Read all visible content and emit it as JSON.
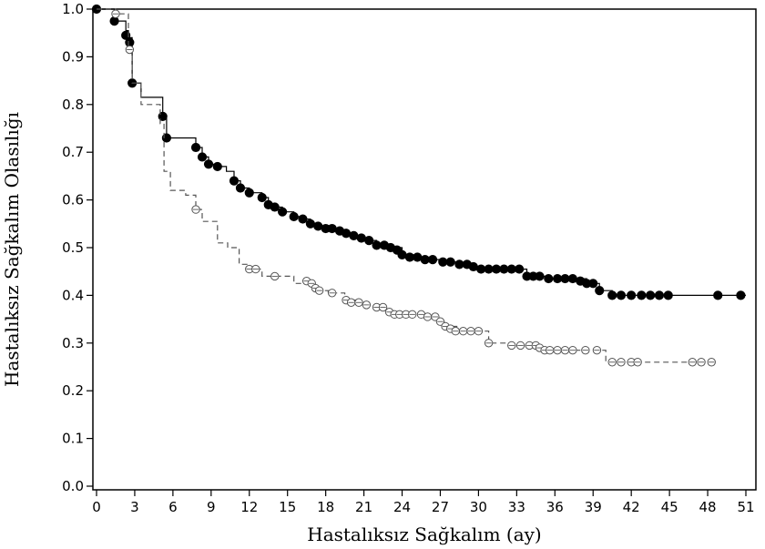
{
  "chart_data": {
    "type": "line",
    "title": "",
    "xlabel": "Hastalıksız Sağkalım (ay)",
    "ylabel": "Hastalıksız Sağkalım Olasılığı",
    "xlim": [
      0,
      51
    ],
    "ylim": [
      0,
      1
    ],
    "x_ticks": [
      "0",
      "3",
      "6",
      "9",
      "12",
      "15",
      "18",
      "21",
      "24",
      "27",
      "30",
      "33",
      "36",
      "39",
      "42",
      "45",
      "48",
      "51"
    ],
    "y_ticks": [
      "0.0",
      "0.1",
      "0.2",
      "0.3",
      "0.4",
      "0.5",
      "0.6",
      "0.7",
      "0.8",
      "0.9",
      "1.0"
    ],
    "grid": false,
    "legend": "none",
    "series": [
      {
        "style": "solid",
        "marker": "filled-circle",
        "color": "#000000",
        "step_points": [
          [
            0,
            1.0
          ],
          [
            1.4,
            0.975
          ],
          [
            2.3,
            0.955
          ],
          [
            2.5,
            0.94
          ],
          [
            2.8,
            0.845
          ],
          [
            3.5,
            0.815
          ],
          [
            5.2,
            0.775
          ],
          [
            5.5,
            0.73
          ],
          [
            6.8,
            0.73
          ],
          [
            7.8,
            0.71
          ],
          [
            8.3,
            0.69
          ],
          [
            8.8,
            0.675
          ],
          [
            9.5,
            0.67
          ],
          [
            10.2,
            0.66
          ],
          [
            10.8,
            0.64
          ],
          [
            11.3,
            0.625
          ],
          [
            12.0,
            0.615
          ],
          [
            13.0,
            0.605
          ],
          [
            13.5,
            0.59
          ],
          [
            14.0,
            0.585
          ],
          [
            14.6,
            0.575
          ],
          [
            15.5,
            0.565
          ],
          [
            16.2,
            0.56
          ],
          [
            16.8,
            0.55
          ],
          [
            17.4,
            0.545
          ],
          [
            18.0,
            0.54
          ],
          [
            19.1,
            0.535
          ],
          [
            19.8,
            0.525
          ],
          [
            20.5,
            0.52
          ],
          [
            21.2,
            0.515
          ],
          [
            22.0,
            0.505
          ],
          [
            23.1,
            0.5
          ],
          [
            24.0,
            0.485
          ],
          [
            25.2,
            0.48
          ],
          [
            26.4,
            0.475
          ],
          [
            27.2,
            0.47
          ],
          [
            28.5,
            0.465
          ],
          [
            29.6,
            0.46
          ],
          [
            30.2,
            0.455
          ],
          [
            33.8,
            0.44
          ],
          [
            35.5,
            0.435
          ],
          [
            38.5,
            0.425
          ],
          [
            39.5,
            0.41
          ],
          [
            40.5,
            0.4
          ],
          [
            51.0,
            0.4
          ]
        ],
        "markers": [
          [
            0,
            1.0
          ],
          [
            1.4,
            0.975
          ],
          [
            2.3,
            0.945
          ],
          [
            2.6,
            0.93
          ],
          [
            2.8,
            0.845
          ],
          [
            5.2,
            0.775
          ],
          [
            5.5,
            0.73
          ],
          [
            7.8,
            0.71
          ],
          [
            8.3,
            0.69
          ],
          [
            8.8,
            0.675
          ],
          [
            9.5,
            0.67
          ],
          [
            10.8,
            0.64
          ],
          [
            11.3,
            0.625
          ],
          [
            12.0,
            0.615
          ],
          [
            13.0,
            0.605
          ],
          [
            13.5,
            0.59
          ],
          [
            14.0,
            0.585
          ],
          [
            14.6,
            0.575
          ],
          [
            15.5,
            0.565
          ],
          [
            16.2,
            0.56
          ],
          [
            16.8,
            0.55
          ],
          [
            17.4,
            0.545
          ],
          [
            18.0,
            0.54
          ],
          [
            18.5,
            0.54
          ],
          [
            19.1,
            0.535
          ],
          [
            19.6,
            0.53
          ],
          [
            20.2,
            0.525
          ],
          [
            20.8,
            0.52
          ],
          [
            21.4,
            0.515
          ],
          [
            22.0,
            0.505
          ],
          [
            22.6,
            0.505
          ],
          [
            23.1,
            0.5
          ],
          [
            23.6,
            0.495
          ],
          [
            24.0,
            0.485
          ],
          [
            24.6,
            0.48
          ],
          [
            25.2,
            0.48
          ],
          [
            25.8,
            0.475
          ],
          [
            26.4,
            0.475
          ],
          [
            27.2,
            0.47
          ],
          [
            27.8,
            0.47
          ],
          [
            28.5,
            0.465
          ],
          [
            29.1,
            0.465
          ],
          [
            29.6,
            0.46
          ],
          [
            30.2,
            0.455
          ],
          [
            30.8,
            0.455
          ],
          [
            31.4,
            0.455
          ],
          [
            32.0,
            0.455
          ],
          [
            32.6,
            0.455
          ],
          [
            33.2,
            0.455
          ],
          [
            33.8,
            0.44
          ],
          [
            34.3,
            0.44
          ],
          [
            34.8,
            0.44
          ],
          [
            35.5,
            0.435
          ],
          [
            36.2,
            0.435
          ],
          [
            36.8,
            0.435
          ],
          [
            37.4,
            0.435
          ],
          [
            38.0,
            0.43
          ],
          [
            38.5,
            0.425
          ],
          [
            39.0,
            0.425
          ],
          [
            39.5,
            0.41
          ],
          [
            40.5,
            0.4
          ],
          [
            41.2,
            0.4
          ],
          [
            42.0,
            0.4
          ],
          [
            42.8,
            0.4
          ],
          [
            43.5,
            0.4
          ],
          [
            44.2,
            0.4
          ],
          [
            44.9,
            0.4
          ],
          [
            48.8,
            0.4
          ],
          [
            50.6,
            0.4
          ]
        ]
      },
      {
        "style": "dashed",
        "marker": "open-circle",
        "color": "#555555",
        "step_points": [
          [
            0,
            1.0
          ],
          [
            1.5,
            0.99
          ],
          [
            2.5,
            0.92
          ],
          [
            2.8,
            0.845
          ],
          [
            3.5,
            0.8
          ],
          [
            5.0,
            0.76
          ],
          [
            5.3,
            0.66
          ],
          [
            5.8,
            0.62
          ],
          [
            7.0,
            0.61
          ],
          [
            7.8,
            0.58
          ],
          [
            8.3,
            0.555
          ],
          [
            9.5,
            0.51
          ],
          [
            10.3,
            0.5
          ],
          [
            11.2,
            0.465
          ],
          [
            12.0,
            0.455
          ],
          [
            13.0,
            0.44
          ],
          [
            15.5,
            0.425
          ],
          [
            16.8,
            0.42
          ],
          [
            17.2,
            0.41
          ],
          [
            18.2,
            0.405
          ],
          [
            19.5,
            0.39
          ],
          [
            20.5,
            0.38
          ],
          [
            22.2,
            0.37
          ],
          [
            23.2,
            0.36
          ],
          [
            25.5,
            0.355
          ],
          [
            26.8,
            0.345
          ],
          [
            27.3,
            0.335
          ],
          [
            28.3,
            0.325
          ],
          [
            30.8,
            0.3
          ],
          [
            33.0,
            0.295
          ],
          [
            35.0,
            0.285
          ],
          [
            38.5,
            0.285
          ],
          [
            40.0,
            0.26
          ],
          [
            48.5,
            0.26
          ]
        ],
        "markers": [
          [
            1.5,
            0.99
          ],
          [
            2.6,
            0.915
          ],
          [
            7.8,
            0.58
          ],
          [
            12.0,
            0.455
          ],
          [
            12.5,
            0.455
          ],
          [
            14.0,
            0.44
          ],
          [
            16.5,
            0.43
          ],
          [
            16.9,
            0.425
          ],
          [
            17.2,
            0.415
          ],
          [
            17.5,
            0.41
          ],
          [
            18.5,
            0.405
          ],
          [
            19.6,
            0.39
          ],
          [
            20.0,
            0.385
          ],
          [
            20.6,
            0.385
          ],
          [
            21.2,
            0.38
          ],
          [
            22.0,
            0.375
          ],
          [
            22.5,
            0.375
          ],
          [
            23.0,
            0.365
          ],
          [
            23.4,
            0.36
          ],
          [
            23.8,
            0.36
          ],
          [
            24.3,
            0.36
          ],
          [
            24.8,
            0.36
          ],
          [
            25.5,
            0.36
          ],
          [
            26.0,
            0.355
          ],
          [
            26.6,
            0.355
          ],
          [
            27.0,
            0.345
          ],
          [
            27.4,
            0.335
          ],
          [
            27.8,
            0.33
          ],
          [
            28.2,
            0.325
          ],
          [
            28.8,
            0.325
          ],
          [
            29.4,
            0.325
          ],
          [
            30.0,
            0.325
          ],
          [
            30.8,
            0.3
          ],
          [
            32.6,
            0.295
          ],
          [
            33.3,
            0.295
          ],
          [
            34.0,
            0.295
          ],
          [
            34.5,
            0.295
          ],
          [
            34.8,
            0.29
          ],
          [
            35.2,
            0.285
          ],
          [
            35.6,
            0.285
          ],
          [
            36.2,
            0.285
          ],
          [
            36.8,
            0.285
          ],
          [
            37.4,
            0.285
          ],
          [
            38.4,
            0.285
          ],
          [
            39.3,
            0.285
          ],
          [
            40.5,
            0.26
          ],
          [
            41.2,
            0.26
          ],
          [
            42.0,
            0.26
          ],
          [
            42.5,
            0.26
          ],
          [
            46.8,
            0.26
          ],
          [
            47.5,
            0.26
          ],
          [
            48.3,
            0.26
          ]
        ]
      }
    ]
  }
}
